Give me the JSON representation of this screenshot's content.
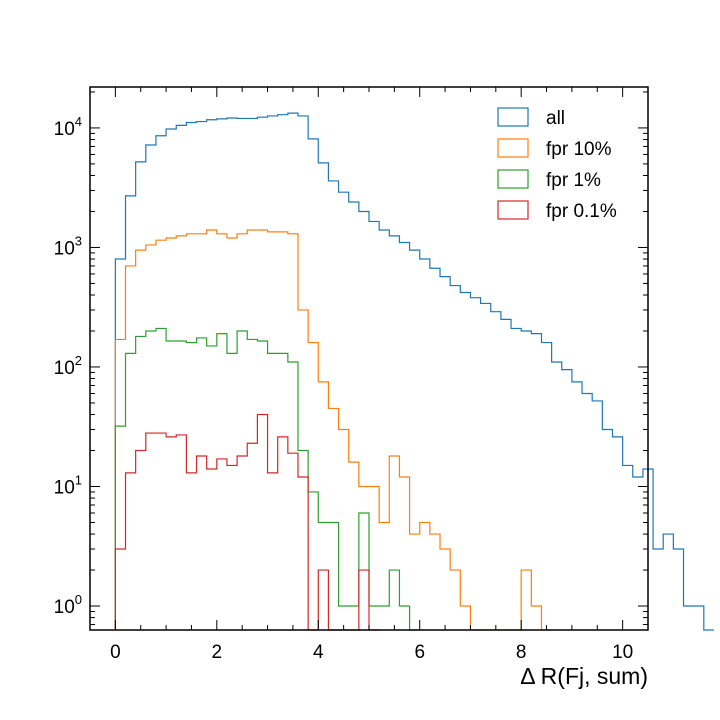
{
  "chart_data": {
    "type": "histogram-step",
    "title": "",
    "xlabel": "Δ R(Fj, sum)",
    "ylabel": "",
    "xlim": [
      -0.5,
      10.5
    ],
    "ylim": [
      0.63,
      22000
    ],
    "yscale": "log",
    "grid": false,
    "legend_position": "top-right",
    "x_ticks": [
      {
        "value": 0,
        "label": "0"
      },
      {
        "value": 2,
        "label": "2"
      },
      {
        "value": 4,
        "label": "4"
      },
      {
        "value": 6,
        "label": "6"
      },
      {
        "value": 8,
        "label": "8"
      },
      {
        "value": 10,
        "label": "10"
      }
    ],
    "y_ticks": [
      {
        "value": 1,
        "base": "10",
        "exp": "0"
      },
      {
        "value": 10,
        "base": "10",
        "exp": "1"
      },
      {
        "value": 100,
        "base": "10",
        "exp": "2"
      },
      {
        "value": 1000,
        "base": "10",
        "exp": "3"
      },
      {
        "value": 10000,
        "base": "10",
        "exp": "4"
      }
    ],
    "bin_start": 0,
    "bin_width": 0.2,
    "series": [
      {
        "name": "all",
        "color": "#1f77b4",
        "values": [
          800,
          2700,
          5200,
          7200,
          8600,
          9800,
          10500,
          11100,
          11300,
          11700,
          11900,
          12100,
          12000,
          12000,
          12300,
          12600,
          12900,
          13300,
          12600,
          8100,
          5100,
          3600,
          2900,
          2400,
          2000,
          1650,
          1400,
          1250,
          1100,
          950,
          800,
          670,
          570,
          480,
          420,
          380,
          340,
          290,
          250,
          210,
          200,
          190,
          160,
          110,
          95,
          75,
          60,
          52,
          30,
          26,
          15,
          12,
          14,
          3,
          4,
          3,
          1,
          1,
          0.63
        ]
      },
      {
        "name": "fpr 10%",
        "color": "#ff7f0e",
        "values": [
          170,
          700,
          950,
          1050,
          1150,
          1200,
          1250,
          1300,
          1300,
          1400,
          1300,
          1200,
          1300,
          1400,
          1400,
          1350,
          1350,
          1300,
          300,
          160,
          75,
          45,
          30,
          16,
          10,
          10,
          5,
          18,
          12,
          4,
          5,
          4,
          3,
          2,
          1,
          0.63,
          0.63,
          0.63,
          0.63,
          0.63,
          2,
          1,
          0.63
        ]
      },
      {
        "name": "fpr 1%",
        "color": "#2ca02c",
        "values": [
          32,
          130,
          180,
          200,
          210,
          165,
          165,
          160,
          175,
          150,
          190,
          130,
          200,
          170,
          165,
          130,
          130,
          110,
          20,
          9,
          5,
          5,
          1,
          1,
          6,
          1,
          1,
          2,
          1,
          0.63
        ]
      },
      {
        "name": "fpr 0.1%",
        "color": "#d62728",
        "values": [
          3,
          13,
          20,
          28,
          28,
          26,
          27,
          13,
          18,
          14,
          17,
          15,
          18,
          23,
          40,
          13,
          26,
          19,
          12,
          0.63,
          2,
          0.63,
          0.63,
          0.63,
          2,
          0.63
        ]
      }
    ]
  }
}
